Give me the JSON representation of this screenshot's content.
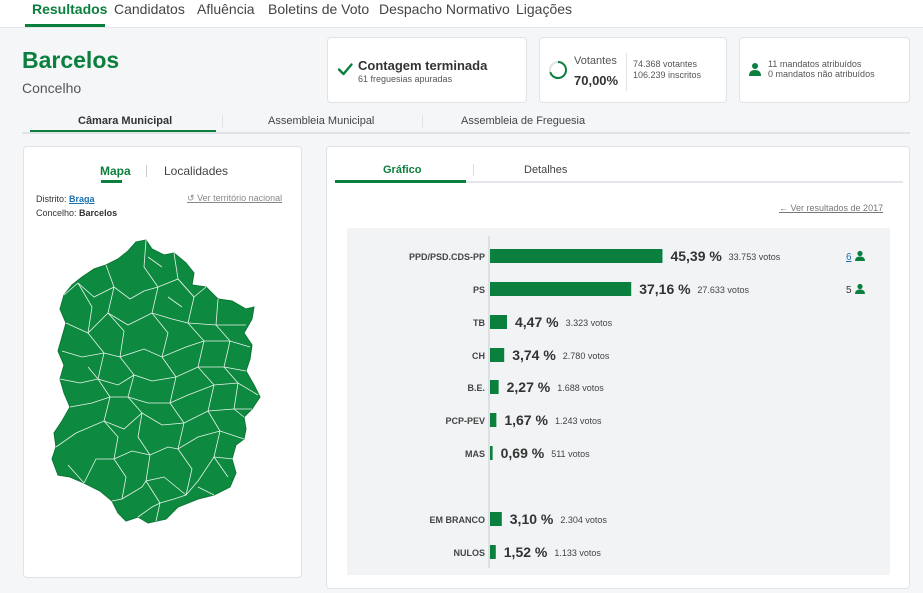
{
  "nav": {
    "items": [
      "Resultados",
      "Candidatos",
      "Afluência",
      "Boletins de Voto",
      "Despacho Normativo",
      "Ligações"
    ],
    "active": "Resultados"
  },
  "header": {
    "title": "Barcelos",
    "subtitle": "Concelho"
  },
  "status": {
    "title": "Contagem terminada",
    "subtitle": "61 freguesias apuradas"
  },
  "turnout": {
    "label": "Votantes",
    "percent": "70,00%",
    "fraction": 0.7,
    "voters": "74.368 votantes",
    "registered": "106.239 inscritos"
  },
  "mandates": {
    "assigned": "11 mandatos atribuídos",
    "unassigned": "0 mandatos não atribuídos"
  },
  "organ_tabs": [
    "Câmara Municipal",
    "Assembleia Municipal",
    "Assembleia de Freguesia"
  ],
  "left_panel": {
    "tabs": [
      "Mapa",
      "Localidades"
    ],
    "district_label": "Distrito:",
    "district_value": "Braga",
    "council_label": "Concelho:",
    "council_value": "Barcelos",
    "national_link": "Ver território nacional"
  },
  "right_panel": {
    "tabs": [
      "Gráfico",
      "Detalhes"
    ],
    "previous_link": "Ver resultados de 2017"
  },
  "colors": {
    "accent": "#0b7f3d",
    "map": "#0d8a3f"
  },
  "chart_data": {
    "type": "bar",
    "orientation": "horizontal",
    "categories": [
      "PPD/PSD.CDS-PP",
      "PS",
      "TB",
      "CH",
      "B.E.",
      "PCP-PEV",
      "MAS",
      "EM BRANCO",
      "NULOS"
    ],
    "values": [
      45.39,
      37.16,
      4.47,
      3.74,
      2.27,
      1.67,
      0.69,
      3.1,
      1.52
    ],
    "percent_labels": [
      "45,39 %",
      "37,16 %",
      "4,47 %",
      "3,74 %",
      "2,27 %",
      "1,67 %",
      "0,69 %",
      "3,10 %",
      "1,52 %"
    ],
    "votes_labels": [
      "33.753 votos",
      "27.633 votos",
      "3.323 votos",
      "2.780 votos",
      "1.688 votos",
      "1.243 votos",
      "511 votos",
      "2.304 votos",
      "1.133 votos"
    ],
    "mandates": [
      "6",
      "5",
      "",
      "",
      "",
      "",
      "",
      "",
      ""
    ]
  }
}
